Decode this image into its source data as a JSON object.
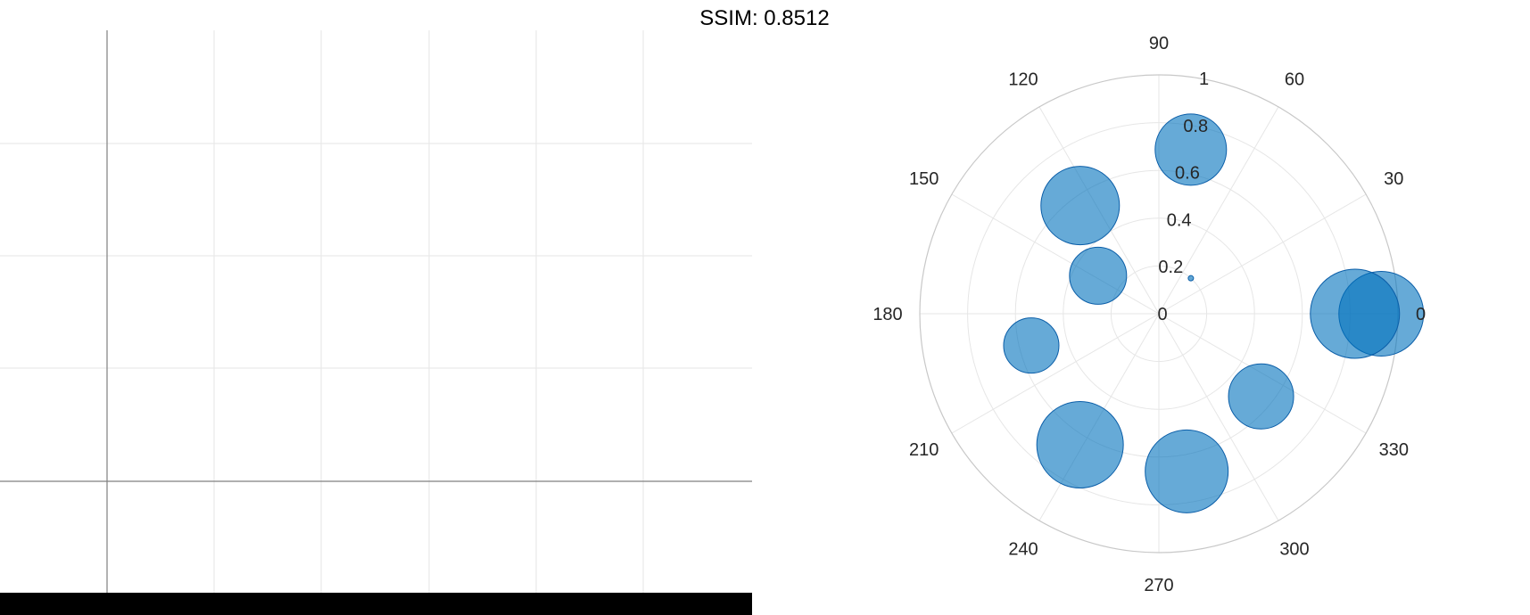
{
  "title": "SSIM: 0.8512",
  "colors": {
    "marker": "#0072BD",
    "bar": "#000000"
  },
  "chart_data": [
    {
      "type": "cartesian-empty",
      "grid": true,
      "x_tick_labels": [],
      "y_tick_labels": []
    },
    {
      "type": "polar-bubble",
      "theta_ticks": [
        "0",
        "30",
        "60",
        "90",
        "120",
        "150",
        "180",
        "210",
        "240",
        "270",
        "300",
        "330"
      ],
      "r_ticks": [
        "0",
        "0.2",
        "0.4",
        "0.6",
        "0.8",
        "1"
      ],
      "rlim": [
        0,
        1
      ],
      "grid": true,
      "points": [
        {
          "theta": 0,
          "r": 0.93,
          "size": 0.95
        },
        {
          "theta": 0,
          "r": 0.82,
          "size": 1.0
        },
        {
          "theta": 48,
          "r": 0.2,
          "size": 0.06
        },
        {
          "theta": 79,
          "r": 0.7,
          "size": 0.8
        },
        {
          "theta": 126,
          "r": 0.56,
          "size": 0.88
        },
        {
          "theta": 148,
          "r": 0.3,
          "size": 0.64
        },
        {
          "theta": 194,
          "r": 0.55,
          "size": 0.62
        },
        {
          "theta": 239,
          "r": 0.64,
          "size": 0.97
        },
        {
          "theta": 280,
          "r": 0.67,
          "size": 0.93
        },
        {
          "theta": 321,
          "r": 0.55,
          "size": 0.73
        }
      ]
    }
  ]
}
